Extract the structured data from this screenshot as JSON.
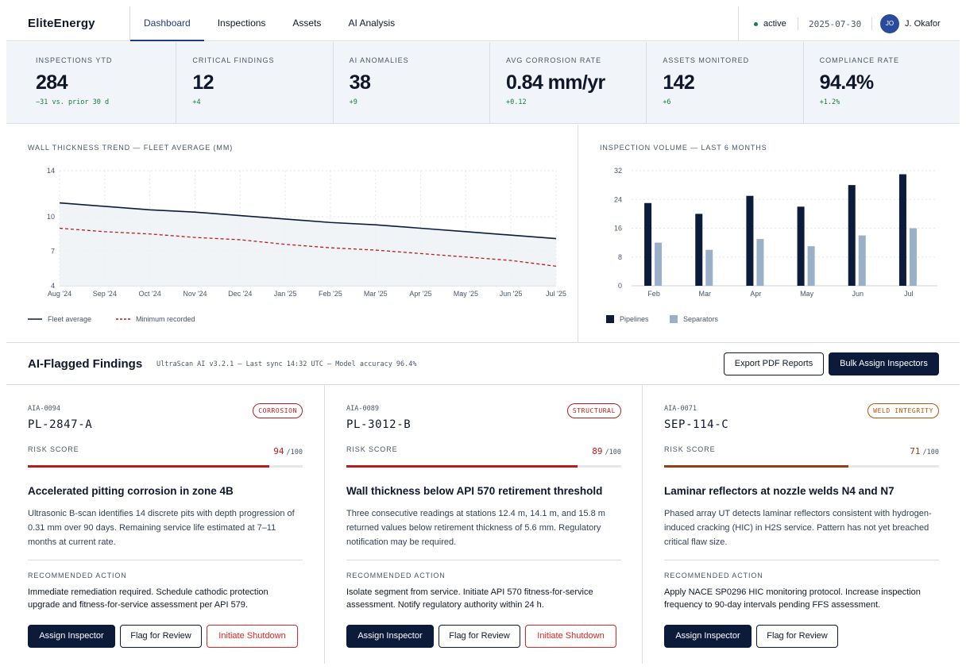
{
  "header": {
    "brand": "EliteEnergy",
    "nav": [
      "Dashboard",
      "Inspections",
      "Assets",
      "AI Analysis"
    ],
    "active_nav": "Dashboard",
    "status": "active",
    "date": "2025-07-30",
    "user_initials": "JO",
    "user_name": "J. Okafor"
  },
  "kpis": [
    {
      "label": "Inspections YTD",
      "value": "284",
      "delta": "−31 vs. prior 30 d"
    },
    {
      "label": "Critical Findings",
      "value": "12",
      "delta": "+4"
    },
    {
      "label": "AI Anomalies",
      "value": "38",
      "delta": "+9"
    },
    {
      "label": "Avg Corrosion Rate",
      "value": "0.84 mm/yr",
      "delta": "+0.12"
    },
    {
      "label": "Assets Monitored",
      "value": "142",
      "delta": "+6"
    },
    {
      "label": "Compliance Rate",
      "value": "94.4%",
      "delta": "+1.2%"
    }
  ],
  "chart_data": [
    {
      "type": "line",
      "title": "Wall Thickness Trend — Fleet Average (mm)",
      "categories": [
        "Aug '24",
        "Sep '24",
        "Oct '24",
        "Nov '24",
        "Dec '24",
        "Jan '25",
        "Feb '25",
        "Mar '25",
        "Apr '25",
        "May '25",
        "Jun '25",
        "Jul '25"
      ],
      "yticks": [
        4,
        7,
        10,
        14
      ],
      "ylim": [
        4,
        14
      ],
      "grid": true,
      "legend_position": "bottom-left",
      "series": [
        {
          "name": "Fleet average",
          "values": [
            11.2,
            10.9,
            10.6,
            10.4,
            10.1,
            9.8,
            9.5,
            9.3,
            9.0,
            8.7,
            8.4,
            8.1
          ],
          "color": "#0d1b3a"
        },
        {
          "name": "Minimum recorded",
          "values": [
            9.0,
            8.7,
            8.5,
            8.2,
            8.0,
            7.6,
            7.3,
            7.1,
            6.8,
            6.5,
            6.2,
            5.7
          ],
          "color": "#b91c1c"
        }
      ]
    },
    {
      "type": "bar",
      "title": "Inspection Volume — Last 6 Months",
      "categories": [
        "Feb",
        "Mar",
        "Apr",
        "May",
        "Jun",
        "Jul"
      ],
      "yticks": [
        0,
        8,
        16,
        24,
        32
      ],
      "ylim": [
        0,
        32
      ],
      "grid": true,
      "legend_position": "bottom-left",
      "series": [
        {
          "name": "Pipelines",
          "values": [
            23,
            20,
            25,
            22,
            28,
            31
          ],
          "color": "#0d1b3a"
        },
        {
          "name": "Separators",
          "values": [
            12,
            10,
            13,
            11,
            14,
            16
          ],
          "color": "#9bb0c8"
        }
      ]
    }
  ],
  "findings": {
    "title": "AI-Flagged Findings",
    "meta": "UltraScan AI v3.2.1 — Last sync 14:32 UTC — Model accuracy 96.4%",
    "export_label": "Export PDF Reports",
    "bulk_label": "Bulk Assign Inspectors",
    "risk_label": "Risk Score",
    "rec_label": "Recommended Action",
    "cards": [
      {
        "id": "AIA-0094",
        "asset": "PL-2847-A",
        "tag": "Corrosion",
        "score": "94",
        "score_den": "/100",
        "score_fraction": 0.88,
        "severity_color": "#b91c1c",
        "headline": "Accelerated pitting corrosion in zone 4B",
        "body": "Ultrasonic B-scan identifies 14 discrete pits with depth progression of 0.31 mm over 90 days. Remaining service life estimated at 7–11 months at current rate.",
        "action": "Immediate remediation required. Schedule cathodic protection upgrade and fitness-for-service assessment per API 579.",
        "buttons": [
          "Assign Inspector",
          "Flag for Review",
          "Initiate Shutdown"
        ]
      },
      {
        "id": "AIA-0089",
        "asset": "PL-3012-B",
        "tag": "Structural",
        "score": "89",
        "score_den": "/100",
        "score_fraction": 0.84,
        "severity_color": "#b91c1c",
        "headline": "Wall thickness below API 570 retirement threshold",
        "body": "Three consecutive readings at stations 12.4 m, 14.1 m, and 15.8 m returned values below retirement thickness of 5.6 mm. Regulatory notification may be required.",
        "action": "Isolate segment from service. Initiate API 570 fitness-for-service assessment. Notify regulatory authority within 24 h.",
        "buttons": [
          "Assign Inspector",
          "Flag for Review",
          "Initiate Shutdown"
        ]
      },
      {
        "id": "AIA-0071",
        "asset": "SEP-114-C",
        "tag": "Weld Integrity",
        "score": "71",
        "score_den": "/100",
        "score_fraction": 0.67,
        "severity_color": "#92400e",
        "headline": "Laminar reflectors at nozzle welds N4 and N7",
        "body": "Phased array UT detects laminar reflectors consistent with hydrogen-induced cracking (HIC) in H2S service. Pattern has not yet breached critical flaw size.",
        "action": "Apply NACE SP0296 HIC monitoring protocol. Increase inspection frequency to 90-day intervals pending FFS assessment.",
        "buttons": [
          "Assign Inspector",
          "Flag for Review"
        ]
      }
    ]
  }
}
